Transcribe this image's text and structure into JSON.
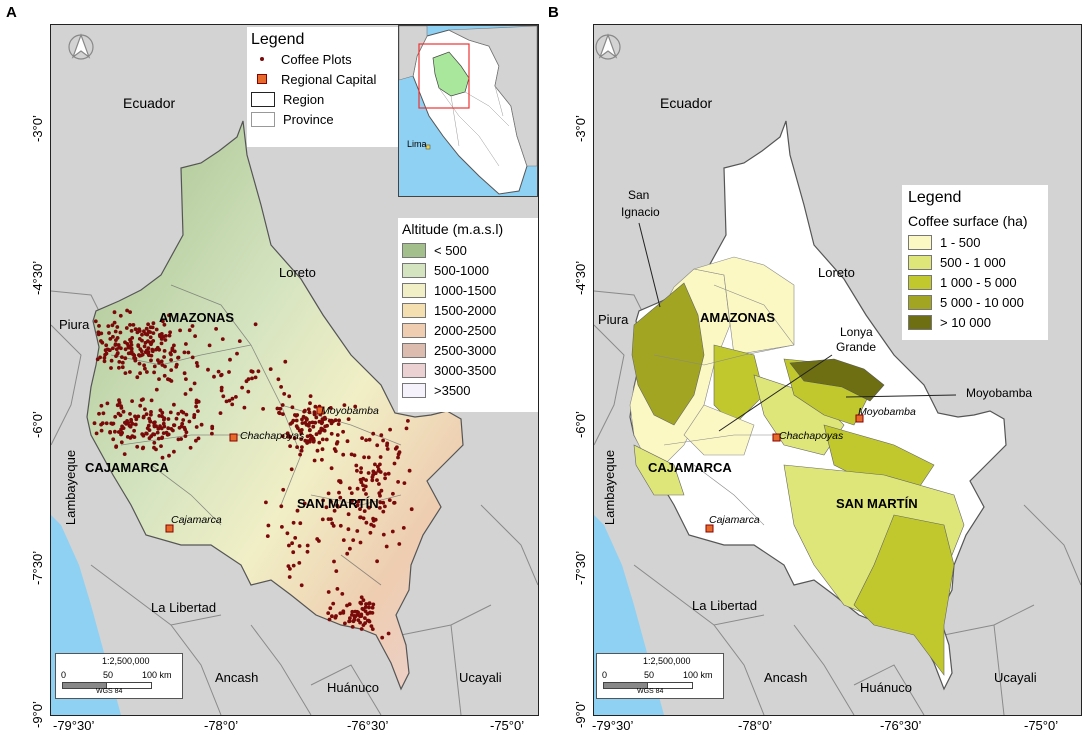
{
  "panels": [
    {
      "letter": "A",
      "labels": {
        "ecuador": "Ecuador",
        "loreto": "Loreto",
        "piura": "Piura",
        "lambayeque": "Lambayeque",
        "la_libertad": "La Libertad",
        "ancash": "Ancash",
        "huanuco": "Huánuco",
        "ucayali": "Ucayali",
        "amazonas": "AMAZONAS",
        "cajamarca_region": "CAJAMARCA",
        "san_martin": "SAN MARTÍN",
        "moyobamba": "Moyobamba",
        "chachapoyas": "Chachapoyas",
        "cajamarca_city": "Cajamarca",
        "lima": "Lima"
      },
      "legend": {
        "title": "Legend",
        "items": [
          {
            "label": "Coffee Plots",
            "symbol": "dot"
          },
          {
            "label": "Regional Capital",
            "symbol": "capital"
          },
          {
            "label": "Region",
            "symbol": "region"
          },
          {
            "label": "Province",
            "symbol": "province"
          }
        ]
      },
      "altitude_legend": {
        "title": "Altitude (m.a.s.l)",
        "items": [
          {
            "label": "< 500",
            "color": "#a3c08c"
          },
          {
            "label": "500-1000",
            "color": "#d5e4c0"
          },
          {
            "label": "1000-1500",
            "color": "#f1efc6"
          },
          {
            "label": "1500-2000",
            "color": "#f4dfb1"
          },
          {
            "label": "2000-2500",
            "color": "#eecdb0"
          },
          {
            "label": "2500-3000",
            "color": "#dcbcae"
          },
          {
            "label": "3000-3500",
            "color": "#ecd1d3"
          },
          {
            "label": ">3500",
            "color": "#f5f2fb"
          }
        ]
      }
    },
    {
      "letter": "B",
      "labels": {
        "ecuador": "Ecuador",
        "loreto": "Loreto",
        "piura": "Piura",
        "lambayeque": "Lambayeque",
        "la_libertad": "La Libertad",
        "ancash": "Ancash",
        "huanuco": "Huánuco",
        "ucayali": "Ucayali",
        "amazonas": "AMAZONAS",
        "cajamarca_region": "CAJAMARCA",
        "san_martin": "SAN MARTÍN",
        "moyobamba": "Moyobamba",
        "chachapoyas": "Chachapoyas",
        "cajamarca_city": "Cajamarca",
        "san_ignacio_1": "San",
        "san_ignacio_2": "Ignacio",
        "lonya_1": "Lonya",
        "lonya_2": "Grande",
        "moyobamba_callout": "Moyobamba"
      },
      "legend": {
        "title": "Legend",
        "subtitle": "Coffee surface (ha)",
        "items": [
          {
            "label": "1 - 500",
            "color": "#fbf8c4"
          },
          {
            "label": "500 - 1 000",
            "color": "#dfe679"
          },
          {
            "label": "1 000 - 5 000",
            "color": "#c0c82e"
          },
          {
            "label": "5 000 - 10 000",
            "color": "#a2a521"
          },
          {
            "label": "> 10 000",
            "color": "#6d6f12"
          }
        ]
      }
    }
  ],
  "axes": {
    "lat_ticks": [
      "-3°0’",
      "-4°30’",
      "-6°0’",
      "-7°30’",
      "-9°0’"
    ],
    "lon_ticks": [
      "-79°30’",
      "-78°0’",
      "-76°30’",
      "-75°0’"
    ]
  },
  "scale_bar": {
    "ratio": "1:2,500,000",
    "ticks": [
      "0",
      "50",
      "100 km"
    ],
    "datum": "WGS 84"
  },
  "colors": {
    "background": "#d3d3d3",
    "sea": "#8fd1f3",
    "coffee_dot": "#7a0a0a",
    "capital_fill": "#e66b2a"
  }
}
